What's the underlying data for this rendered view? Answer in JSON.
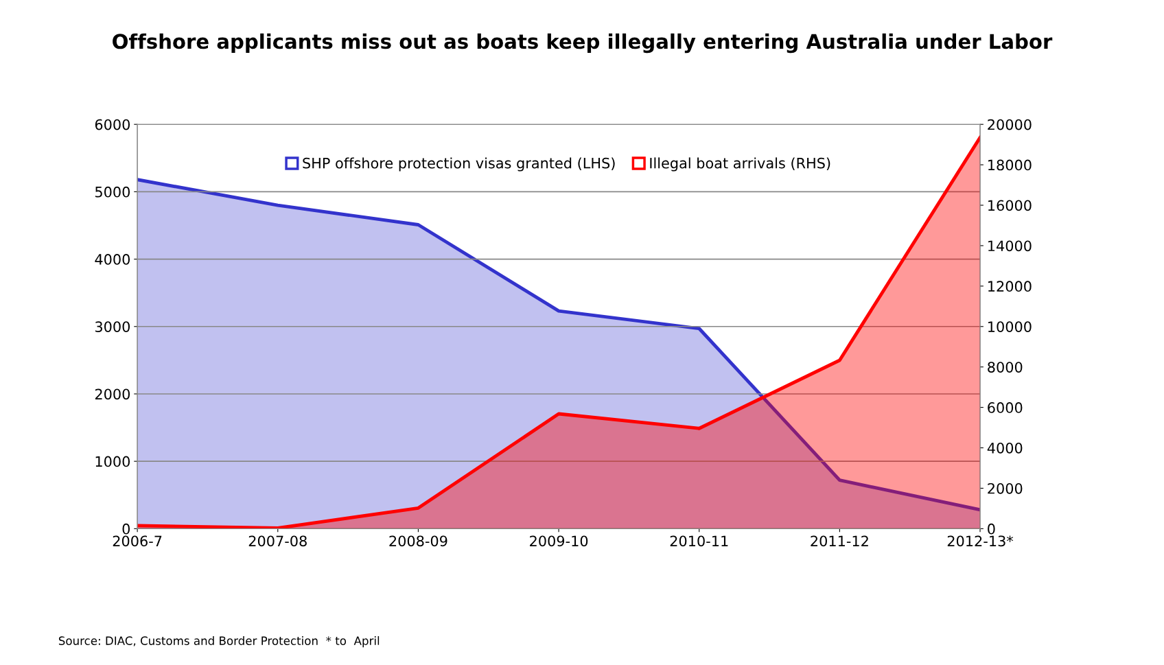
{
  "chart_data": {
    "type": "area",
    "title": "Offshore applicants miss out as boats keep illegally entering Australia under Labor",
    "categories": [
      "2006-7",
      "2007-08",
      "2008-09",
      "2009-10",
      "2010-11",
      "2011-12",
      "2012-13*"
    ],
    "series": [
      {
        "name": "SHP offshore protection visas granted (LHS)",
        "color": "#3333cc",
        "values": [
          5180,
          4800,
          4510,
          3230,
          2970,
          720,
          280
        ]
      },
      {
        "name": "Illegal boat arrivals (RHS)",
        "color": "#ff0000",
        "axis": "y2",
        "values": [
          150,
          30,
          1020,
          5680,
          4960,
          8330,
          19350
        ]
      }
    ],
    "ylim": [
      0,
      6000
    ],
    "yticks": [
      0,
      1000,
      2000,
      3000,
      4000,
      5000,
      6000
    ],
    "y2lim": [
      0,
      20000
    ],
    "y2ticks": [
      0,
      2000,
      4000,
      6000,
      8000,
      10000,
      12000,
      14000,
      16000,
      18000,
      20000
    ],
    "grid": "y",
    "legend": "top",
    "annotations": [
      "Source: DIAC, Customs and Border Protection  * to  April"
    ]
  }
}
